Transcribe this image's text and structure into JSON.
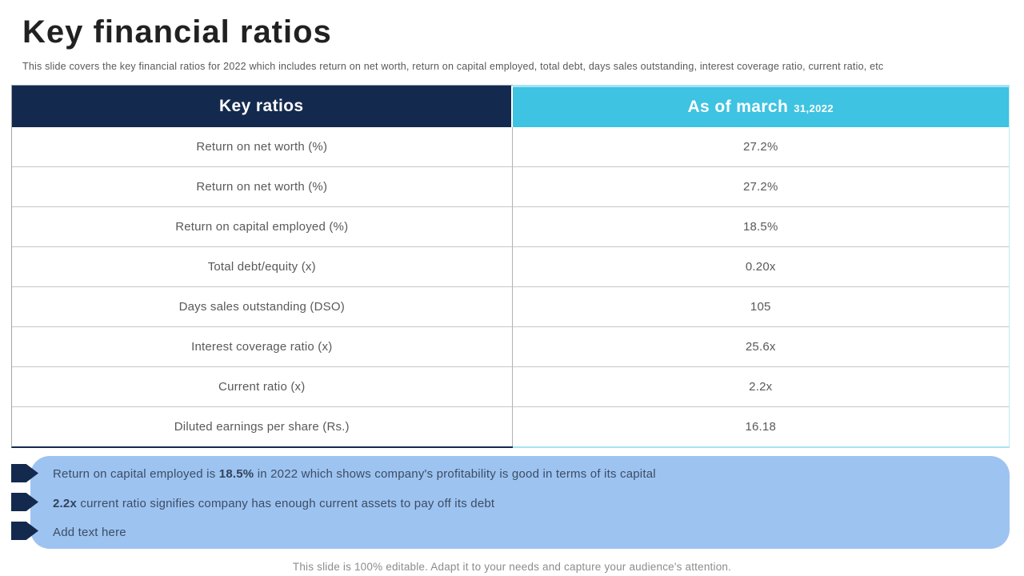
{
  "title": "Key financial ratios",
  "subtitle": "This slide covers the key financial ratios for 2022 which includes return on net worth, return on capital employed, total debt, days sales outstanding, interest coverage ratio, current ratio, etc",
  "table": {
    "col1_header": "Key ratios",
    "col2_header_main": "As of march",
    "col2_header_sub": "31,2022",
    "rows": [
      {
        "label": "Return on net worth (%)",
        "value": "27.2%"
      },
      {
        "label": "Return on net worth (%)",
        "value": "27.2%"
      },
      {
        "label": "Return on capital employed (%)",
        "value": "18.5%"
      },
      {
        "label": "Total debt/equity (x)",
        "value": "0.20x"
      },
      {
        "label": "Days sales outstanding (DSO)",
        "value": "105"
      },
      {
        "label": "Interest coverage ratio (x)",
        "value": "25.6x"
      },
      {
        "label": "Current ratio (x)",
        "value": "2.2x"
      },
      {
        "label": "Diluted earnings per share (Rs.)",
        "value": "16.18"
      }
    ]
  },
  "callout": {
    "bullets": [
      {
        "pre": "Return on capital employed is ",
        "bold": "18.5%",
        "post": " in 2022 which shows company's profitability is good in terms of its capital"
      },
      {
        "pre": "",
        "bold": "2.2x",
        "post": " current ratio signifies company has enough current assets to pay off its debt"
      },
      {
        "pre": "Add text here",
        "bold": "",
        "post": ""
      }
    ]
  },
  "footer": "This slide is 100% editable. Adapt it to your needs and capture your audience's attention.",
  "colors": {
    "navy": "#14294e",
    "cyan": "#3ec3e2",
    "light_cyan_border": "#a9e3f0",
    "callout_bg": "#9dc3f1",
    "cell_text": "#595959",
    "callout_text": "#3c4d63"
  }
}
